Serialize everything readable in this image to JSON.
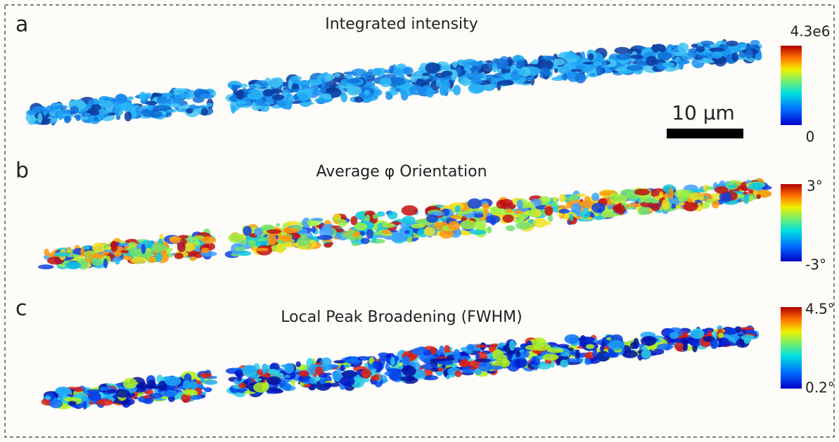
{
  "panels": [
    {
      "label": "a",
      "title": "Integrated intensity",
      "colorbar": {
        "max": "4.3e6",
        "min": "0"
      }
    },
    {
      "label": "b",
      "title": "Average φ Orientation",
      "colorbar": {
        "max": "3°",
        "min": "-3°"
      }
    },
    {
      "label": "c",
      "title": "Local Peak Broadening (FWHM)",
      "colorbar": {
        "max": "4.5°",
        "min": "0.2°"
      }
    }
  ],
  "scale_bar": {
    "label": "10 µm"
  }
}
